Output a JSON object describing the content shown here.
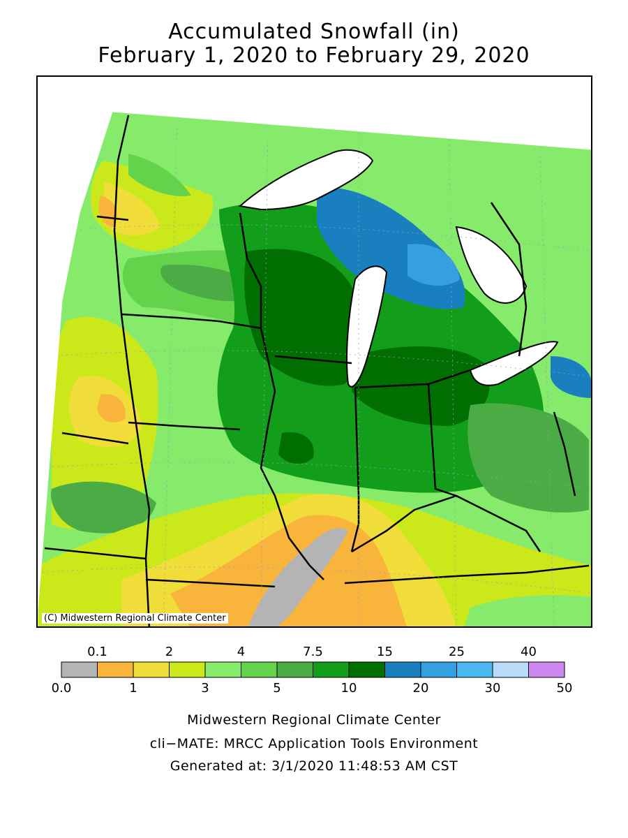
{
  "title": {
    "line1": "Accumulated Snowfall (in)",
    "line2": "February 1, 2020 to February 29, 2020"
  },
  "map": {
    "copyright": "(C) Midwestern Regional Climate Center",
    "region": "Upper Midwest / Great Lakes",
    "gray_zone_value": "0.0–0.1",
    "max_zone_value": "15–20 (northern lower Michigan)"
  },
  "legend": {
    "top_labels": [
      "0.1",
      "2",
      "4",
      "7.5",
      "15",
      "25",
      "40"
    ],
    "bottom_labels": [
      "0.0",
      "1",
      "3",
      "5",
      "10",
      "20",
      "30",
      "50"
    ],
    "colors": [
      "#b4b4b4",
      "#f9b53b",
      "#f1dd3a",
      "#cbe91a",
      "#86ea6b",
      "#63d34c",
      "#4bab45",
      "#129e1a",
      "#006e00",
      "#1a7fbf",
      "#34a0e0",
      "#4ab9f0",
      "#b8dcf8",
      "#cc88ee"
    ]
  },
  "footer": {
    "line1": "Midwestern Regional Climate Center",
    "line2": "cli−MATE: MRCC Application Tools Environment",
    "line3": "Generated at: 3/1/2020 11:48:53 AM CST"
  }
}
